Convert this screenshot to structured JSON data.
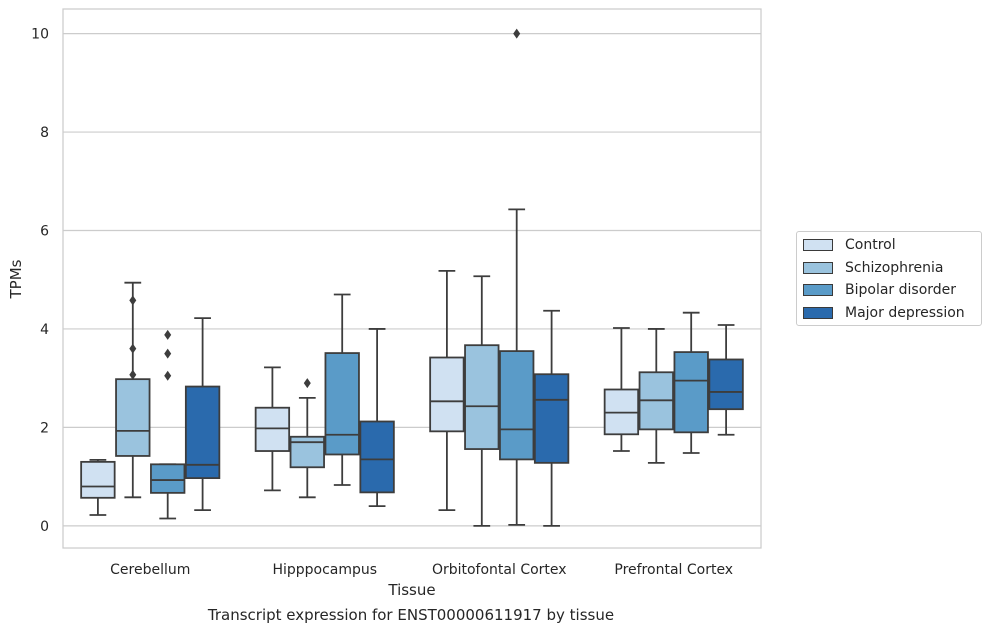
{
  "chart_data": {
    "type": "box",
    "xlabel": "Tissue",
    "ylabel": "TPMs",
    "caption": "Transcript expression for ENST00000611917 by tissue",
    "ylim": [
      -0.45,
      10.5
    ],
    "yticks": [
      0,
      2,
      4,
      6,
      8,
      10
    ],
    "grid": "horizontal",
    "legend_placement": "right",
    "categories": [
      "Cerebellum",
      "Hipppocampus",
      "Orbitofontal Cortex",
      "Prefrontal Cortex"
    ],
    "series": [
      {
        "name": "Control",
        "color": "#d0e1f2",
        "boxes": [
          {
            "whislo": 0.22,
            "q1": 0.57,
            "med": 0.8,
            "q3": 1.3,
            "whishi": 1.34,
            "fliers": []
          },
          {
            "whislo": 0.72,
            "q1": 1.52,
            "med": 1.98,
            "q3": 2.4,
            "whishi": 3.22,
            "fliers": []
          },
          {
            "whislo": 0.32,
            "q1": 1.92,
            "med": 2.53,
            "q3": 3.42,
            "whishi": 5.18,
            "fliers": []
          },
          {
            "whislo": 1.52,
            "q1": 1.86,
            "med": 2.3,
            "q3": 2.77,
            "whishi": 4.02,
            "fliers": []
          }
        ]
      },
      {
        "name": "Schizophrenia",
        "color": "#9ac3de",
        "boxes": [
          {
            "whislo": 0.58,
            "q1": 1.42,
            "med": 1.93,
            "q3": 2.98,
            "whishi": 4.94,
            "fliers": [
              3.07,
              3.6,
              4.58
            ]
          },
          {
            "whislo": 0.58,
            "q1": 1.19,
            "med": 1.7,
            "q3": 1.81,
            "whishi": 2.6,
            "fliers": [
              2.9
            ]
          },
          {
            "whislo": 0.0,
            "q1": 1.56,
            "med": 2.43,
            "q3": 3.67,
            "whishi": 5.07,
            "fliers": []
          },
          {
            "whislo": 1.28,
            "q1": 1.96,
            "med": 2.55,
            "q3": 3.12,
            "whishi": 4.0,
            "fliers": []
          }
        ]
      },
      {
        "name": "Bipolar disorder",
        "color": "#5a9bc8",
        "boxes": [
          {
            "whislo": 0.15,
            "q1": 0.67,
            "med": 0.93,
            "q3": 1.25,
            "whishi": 1.25,
            "fliers": [
              3.05,
              3.5,
              3.88
            ]
          },
          {
            "whislo": 0.83,
            "q1": 1.45,
            "med": 1.85,
            "q3": 3.51,
            "whishi": 4.7,
            "fliers": []
          },
          {
            "whislo": 0.02,
            "q1": 1.35,
            "med": 1.96,
            "q3": 3.55,
            "whishi": 6.43,
            "fliers": [
              10.0
            ]
          },
          {
            "whislo": 1.48,
            "q1": 1.9,
            "med": 2.95,
            "q3": 3.53,
            "whishi": 4.33,
            "fliers": []
          }
        ]
      },
      {
        "name": "Major depression",
        "color": "#2a6aad",
        "boxes": [
          {
            "whislo": 0.32,
            "q1": 0.97,
            "med": 1.24,
            "q3": 2.83,
            "whishi": 4.22,
            "fliers": []
          },
          {
            "whislo": 0.4,
            "q1": 0.68,
            "med": 1.35,
            "q3": 2.12,
            "whishi": 4.0,
            "fliers": []
          },
          {
            "whislo": 0.0,
            "q1": 1.28,
            "med": 2.56,
            "q3": 3.08,
            "whishi": 4.37,
            "fliers": []
          },
          {
            "whislo": 1.85,
            "q1": 2.37,
            "med": 2.72,
            "q3": 3.38,
            "whishi": 4.08,
            "fliers": []
          }
        ]
      }
    ]
  }
}
